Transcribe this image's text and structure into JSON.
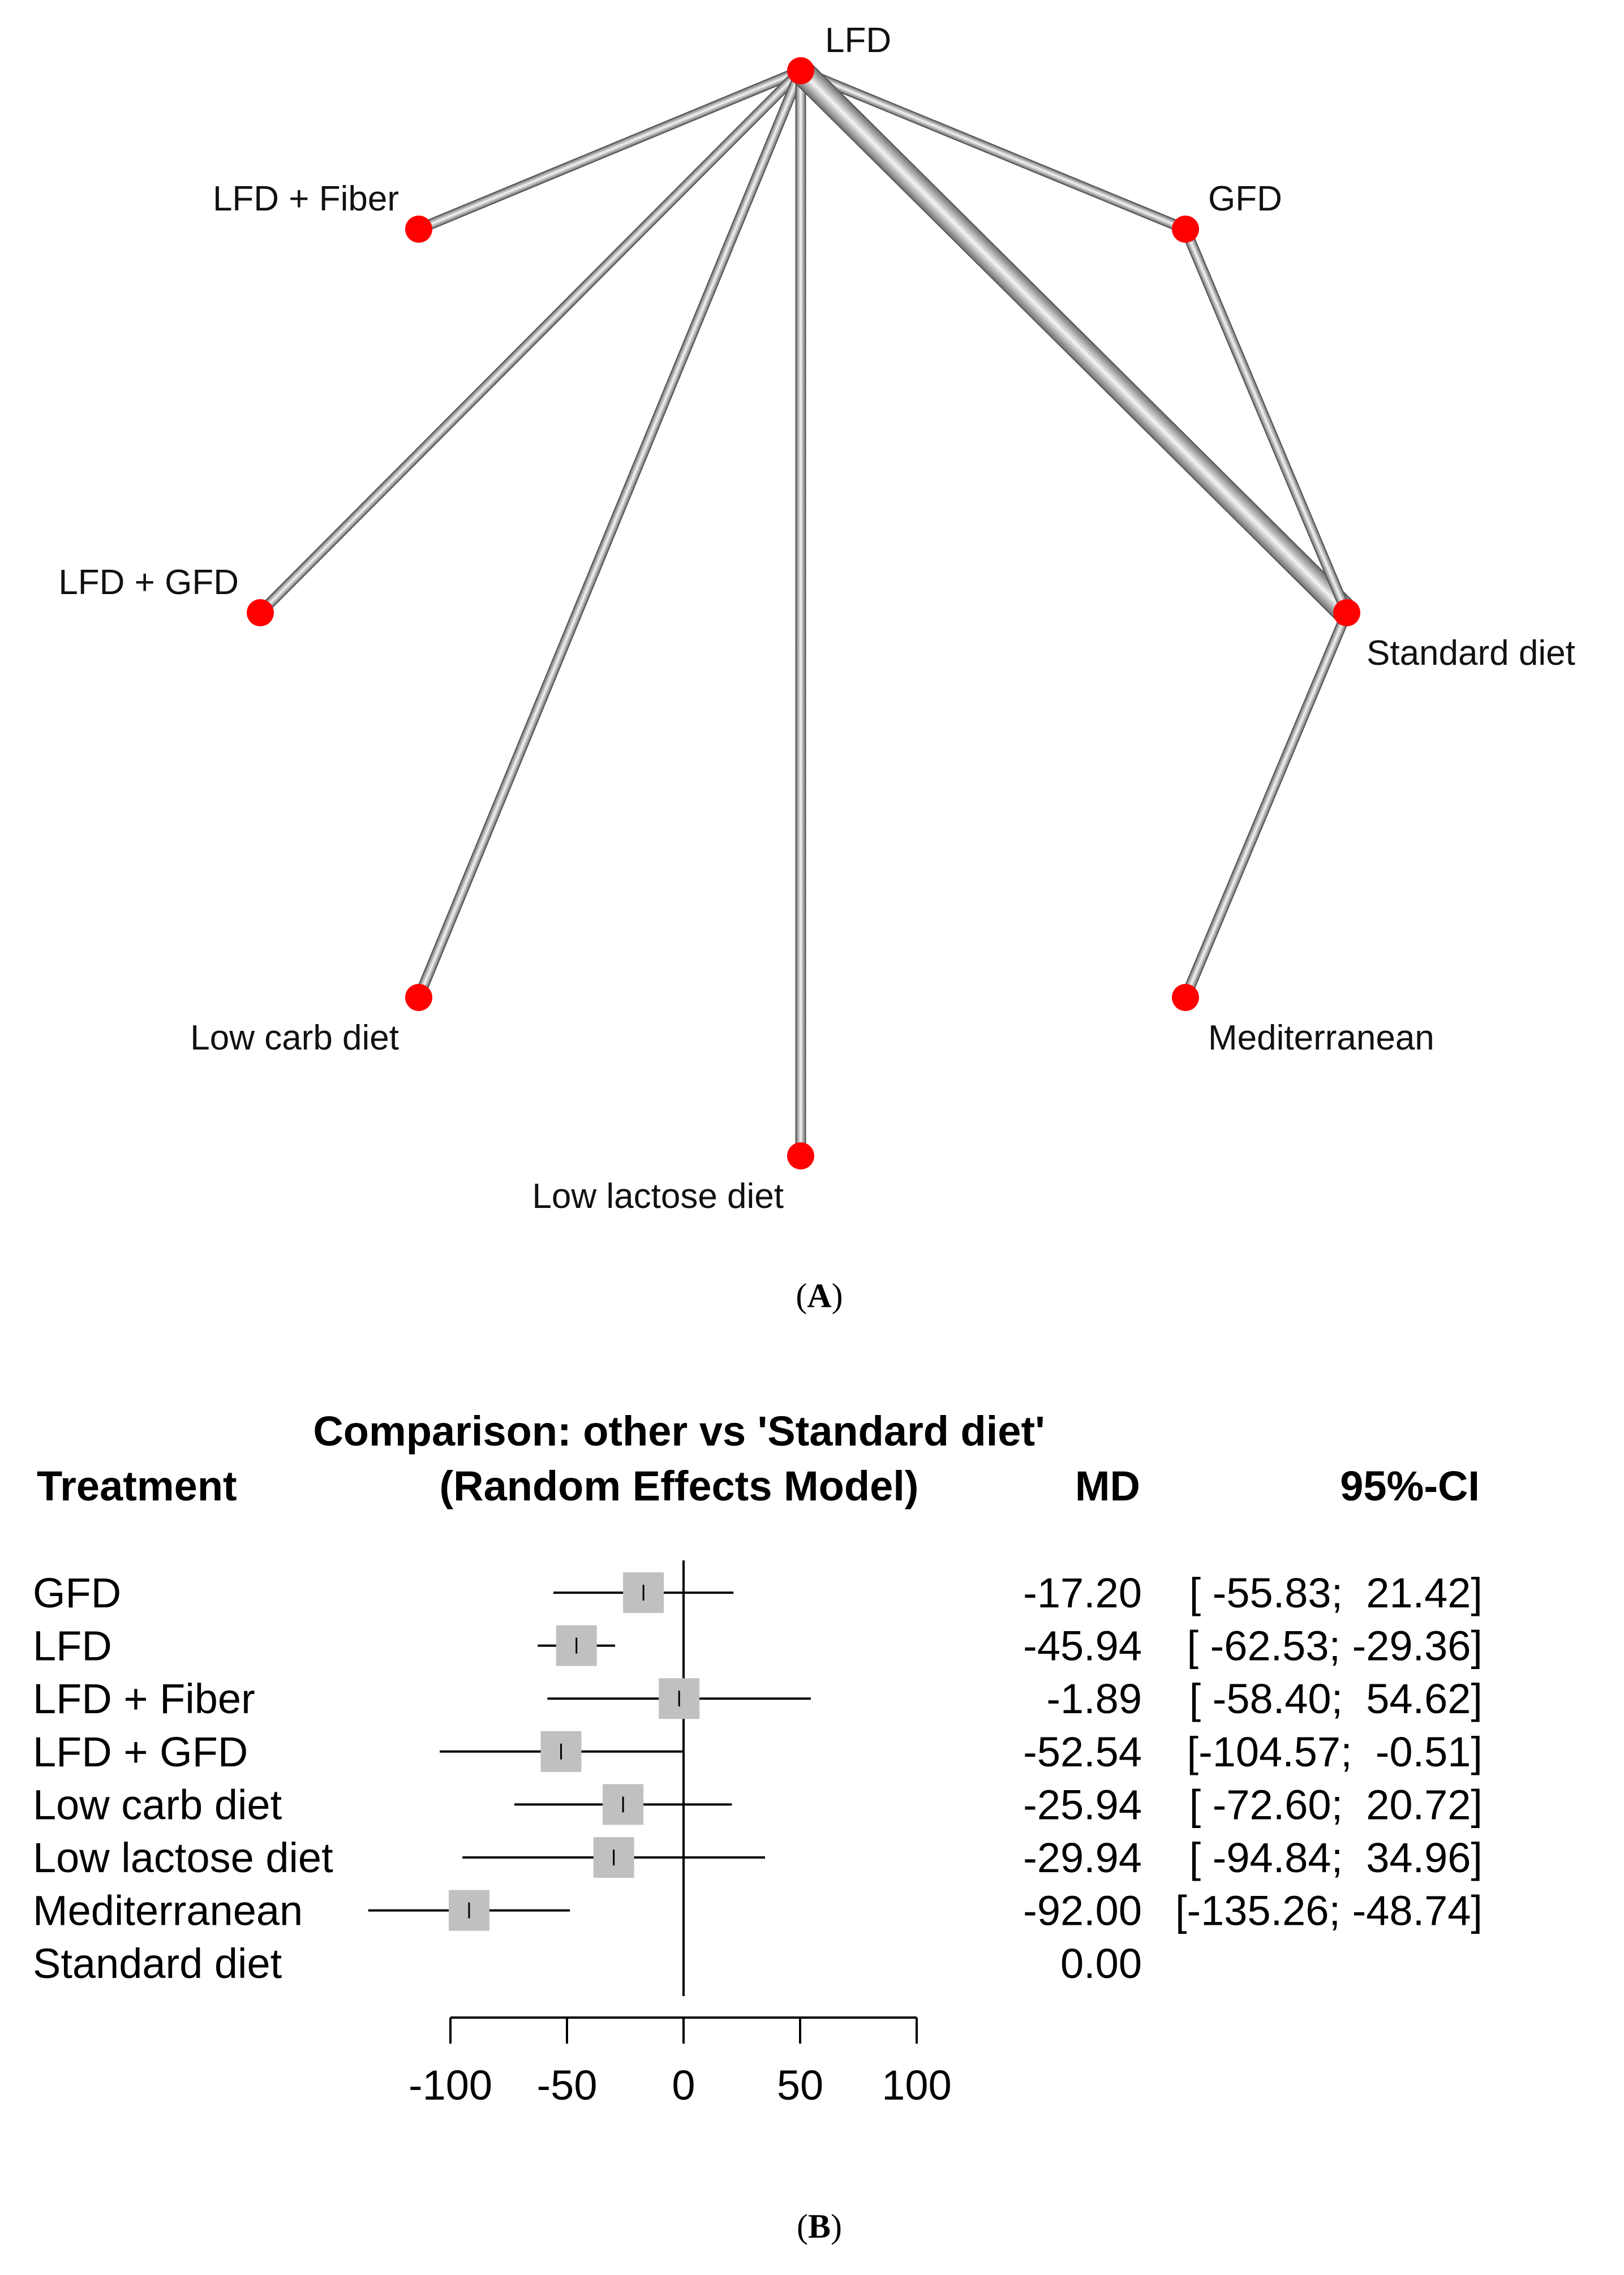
{
  "panel_a": {
    "label_open": "(",
    "label_letter": "A",
    "label_close": ")"
  },
  "panel_b": {
    "label_open": "(",
    "label_letter": "B",
    "label_close": ")"
  },
  "colors": {
    "node": "#ff0000",
    "edge_dark": "#777777",
    "edge_light": "#f2f2f2",
    "box": "#c0c0c0",
    "line": "#000000"
  },
  "chart_data": [
    {
      "type": "network",
      "nodes": [
        {
          "id": "LFD",
          "label": "LFD"
        },
        {
          "id": "LFD+Fiber",
          "label": "LFD + Fiber"
        },
        {
          "id": "GFD",
          "label": "GFD"
        },
        {
          "id": "LFD+GFD",
          "label": "LFD + GFD"
        },
        {
          "id": "Standard",
          "label": "Standard diet"
        },
        {
          "id": "LowCarb",
          "label": "Low carb diet"
        },
        {
          "id": "Mediterranean",
          "label": "Mediterranean"
        },
        {
          "id": "LowLactose",
          "label": "Low lactose diet"
        }
      ],
      "edges": [
        {
          "from": "LFD",
          "to": "LFD+Fiber",
          "studies": 1
        },
        {
          "from": "LFD",
          "to": "GFD",
          "studies": 1
        },
        {
          "from": "LFD",
          "to": "LFD+GFD",
          "studies": 1
        },
        {
          "from": "LFD",
          "to": "LowCarb",
          "studies": 1
        },
        {
          "from": "LFD",
          "to": "LowLactose",
          "studies": 1
        },
        {
          "from": "LFD",
          "to": "Standard",
          "studies": 4
        },
        {
          "from": "GFD",
          "to": "Standard",
          "studies": 1
        },
        {
          "from": "Standard",
          "to": "Mediterranean",
          "studies": 1
        }
      ]
    },
    {
      "type": "forest",
      "title": "Comparison: other vs 'Standard diet'",
      "subtitle": "(Random Effects Model)",
      "headers": {
        "treatment": "Treatment",
        "md": "MD",
        "ci": "95%-CI"
      },
      "xlim": [
        -100,
        100
      ],
      "ticks": [
        -100,
        -50,
        0,
        50,
        100
      ],
      "tick_labels": [
        "-100",
        "-50",
        "0",
        "50",
        "100"
      ],
      "rows": [
        {
          "treatment": "GFD",
          "md": -17.2,
          "lower": -55.83,
          "upper": 21.42,
          "md_text": "-17.20",
          "ci_text": "[ -55.83;  21.42]"
        },
        {
          "treatment": "LFD",
          "md": -45.94,
          "lower": -62.53,
          "upper": -29.36,
          "md_text": "-45.94",
          "ci_text": "[ -62.53; -29.36]"
        },
        {
          "treatment": "LFD + Fiber",
          "md": -1.89,
          "lower": -58.4,
          "upper": 54.62,
          "md_text": "-1.89",
          "ci_text": "[ -58.40;  54.62]"
        },
        {
          "treatment": "LFD + GFD",
          "md": -52.54,
          "lower": -104.57,
          "upper": -0.51,
          "md_text": "-52.54",
          "ci_text": "[-104.57;  -0.51]"
        },
        {
          "treatment": "Low carb diet",
          "md": -25.94,
          "lower": -72.6,
          "upper": 20.72,
          "md_text": "-25.94",
          "ci_text": "[ -72.60;  20.72]"
        },
        {
          "treatment": "Low lactose diet",
          "md": -29.94,
          "lower": -94.84,
          "upper": 34.96,
          "md_text": "-29.94",
          "ci_text": "[ -94.84;  34.96]"
        },
        {
          "treatment": "Mediterranean",
          "md": -92.0,
          "lower": -135.26,
          "upper": -48.74,
          "md_text": "-92.00",
          "ci_text": "[-135.26; -48.74]"
        },
        {
          "treatment": "Standard diet",
          "md": 0.0,
          "lower": null,
          "upper": null,
          "md_text": "0.00",
          "ci_text": ""
        }
      ]
    }
  ]
}
